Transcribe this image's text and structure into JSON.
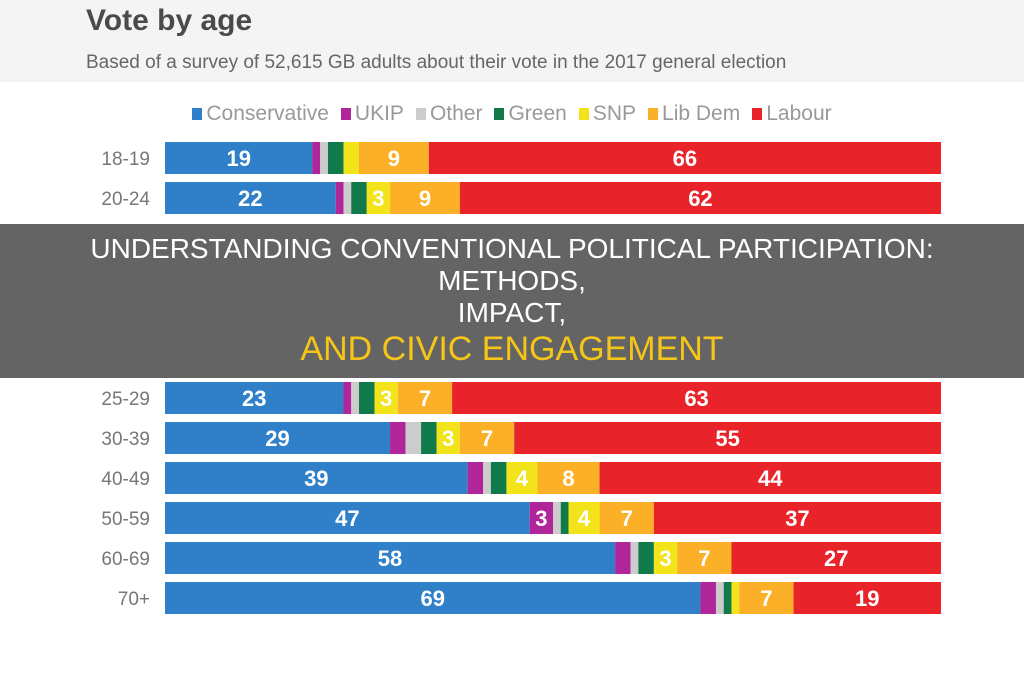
{
  "overlay": {
    "line1": "UNDERSTANDING CONVENTIONAL POLITICAL PARTICIPATION: METHODS,",
    "line2": "IMPACT,",
    "line3": "AND CIVIC ENGAGEMENT"
  },
  "chart_data": {
    "type": "bar",
    "orientation": "horizontal-stacked",
    "title": "Vote by age",
    "subtitle": "Based of a survey of 52,615 GB adults about their vote in the 2017 general election",
    "legend_position": "top",
    "categories": [
      "18-19",
      "20-24",
      "25-29",
      "30-39",
      "40-49",
      "50-59",
      "60-69",
      "70+"
    ],
    "series": [
      {
        "name": "Conservative",
        "color": "#2f80c8",
        "values": [
          19,
          22,
          23,
          29,
          39,
          47,
          58,
          69
        ]
      },
      {
        "name": "UKIP",
        "color": "#b0259a",
        "values": [
          1,
          1,
          1,
          2,
          2,
          3,
          2,
          2
        ]
      },
      {
        "name": "Other",
        "color": "#cccccc",
        "values": [
          1,
          1,
          1,
          2,
          1,
          1,
          1,
          1
        ]
      },
      {
        "name": "Green",
        "color": "#117a4a",
        "values": [
          2,
          2,
          2,
          2,
          2,
          1,
          2,
          1
        ]
      },
      {
        "name": "SNP",
        "color": "#f3e31a",
        "values": [
          2,
          3,
          3,
          3,
          4,
          4,
          3,
          1
        ]
      },
      {
        "name": "Lib Dem",
        "color": "#fbb028",
        "values": [
          9,
          9,
          7,
          7,
          8,
          7,
          7,
          7
        ]
      },
      {
        "name": "Labour",
        "color": "#e8232a",
        "values": [
          66,
          62,
          63,
          55,
          44,
          37,
          27,
          19
        ]
      }
    ],
    "xlim": [
      0,
      100
    ]
  }
}
